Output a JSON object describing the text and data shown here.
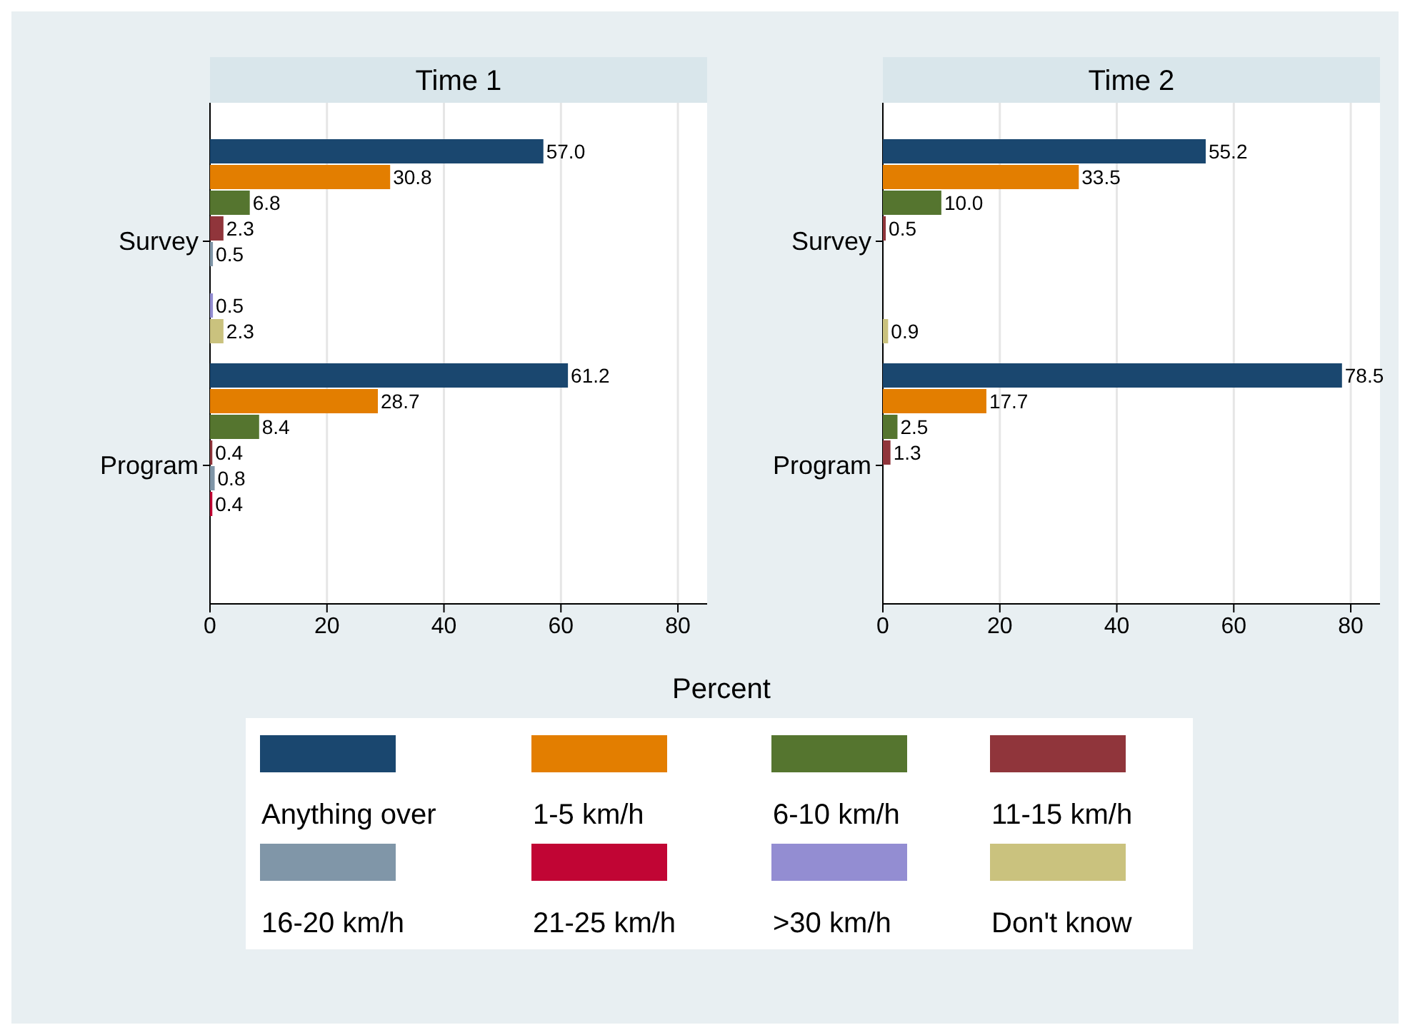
{
  "chart_data": [
    {
      "type": "bar",
      "orientation": "horizontal",
      "title": "Time 1",
      "xlabel": "Percent",
      "categories": [
        "Survey",
        "Program"
      ],
      "xlim": [
        0,
        85
      ],
      "xticks": [
        0,
        20,
        40,
        60,
        80
      ],
      "grid": "x",
      "legend": "bottom",
      "series": [
        {
          "name": "Anything over",
          "color": "#1a476f",
          "values": [
            57.0,
            61.2
          ],
          "value_labels": [
            "57.0",
            "61.2"
          ]
        },
        {
          "name": "1-5 km/h",
          "color": "#e37e00",
          "values": [
            30.8,
            28.7
          ],
          "value_labels": [
            "30.8",
            "28.7"
          ]
        },
        {
          "name": "6-10 km/h",
          "color": "#55752f",
          "values": [
            6.8,
            8.4
          ],
          "value_labels": [
            "6.8",
            "8.4"
          ]
        },
        {
          "name": "11-15 km/h",
          "color": "#90353b",
          "values": [
            2.3,
            0.4
          ],
          "value_labels": [
            "2.3",
            "0.4"
          ]
        },
        {
          "name": "16-20 km/h",
          "color": "#8096a8",
          "values": [
            0.5,
            0.8
          ],
          "value_labels": [
            "0.5",
            "0.8"
          ]
        },
        {
          "name": "21-25 km/h",
          "color": "#c10534",
          "values": [
            null,
            0.4
          ],
          "value_labels": [
            null,
            "0.4"
          ]
        },
        {
          "name": ">30 km/h",
          "color": "#938dd2",
          "values": [
            0.5,
            null
          ],
          "value_labels": [
            "0.5",
            null
          ]
        },
        {
          "name": "Don't know",
          "color": "#cac27e",
          "values": [
            2.3,
            null
          ],
          "value_labels": [
            "2.3",
            null
          ]
        }
      ]
    },
    {
      "type": "bar",
      "orientation": "horizontal",
      "title": "Time 2",
      "categories": [
        "Survey",
        "Program"
      ],
      "xlim": [
        0,
        85
      ],
      "xticks": [
        0,
        20,
        40,
        60,
        80
      ],
      "grid": "x",
      "series": [
        {
          "color": "#1a476f",
          "values": [
            55.2,
            78.5
          ],
          "value_labels": [
            "55.2",
            "78.5"
          ]
        },
        {
          "color": "#e37e00",
          "values": [
            33.5,
            17.7
          ],
          "value_labels": [
            "33.5",
            "17.7"
          ]
        },
        {
          "color": "#55752f",
          "values": [
            10.0,
            2.5
          ],
          "value_labels": [
            "10.0",
            "2.5"
          ]
        },
        {
          "color": "#90353b",
          "values": [
            0.5,
            1.3
          ],
          "value_labels": [
            "0.5",
            "1.3"
          ]
        },
        {
          "values": [
            null,
            null
          ]
        },
        {
          "values": [
            null,
            null
          ]
        },
        {
          "values": [
            null,
            null
          ]
        },
        {
          "color": "#cac27e",
          "values": [
            0.9,
            null
          ],
          "value_labels": [
            "0.9",
            null
          ]
        }
      ]
    }
  ]
}
